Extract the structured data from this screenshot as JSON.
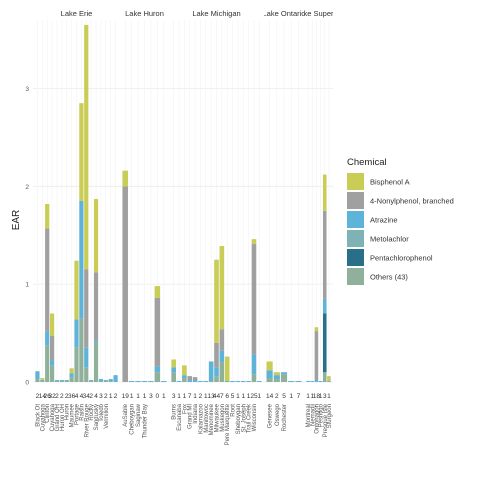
{
  "chart_data": {
    "type": "bar",
    "stacked": true,
    "ylabel": "EAR",
    "xlabel": "",
    "title": "",
    "ylim": [
      0,
      3.7
    ],
    "yticks": [
      0,
      1,
      2,
      3
    ],
    "grid": true,
    "legend": {
      "title": "Chemical",
      "placement": "right",
      "items": [
        {
          "name": "Bisphenol A",
          "color": "#c9cc55"
        },
        {
          "name": "4-Nonylphenol, branched",
          "color": "#a0a0a0"
        },
        {
          "name": "Atrazine",
          "color": "#5eb3d9"
        },
        {
          "name": "Metolachlor",
          "color": "#7fb2b4"
        },
        {
          "name": "Pentachlorophenol",
          "color": "#2a6f8a"
        },
        {
          "name": "Others (43)",
          "color": "#8fb09a"
        }
      ]
    },
    "facets": [
      {
        "name": "Lake Erie",
        "sites": [
          {
            "name": "Black Ot",
            "count": "2",
            "stack": [
              0,
              0,
              0.08,
              0,
              0,
              0.03
            ]
          },
          {
            "name": "Cuyahoga",
            "count": "14",
            "stack": [
              0.02,
              0,
              0.01,
              0,
              0,
              0.01
            ]
          },
          {
            "name": "Clinton",
            "count": "26",
            "stack": [
              0.25,
              1.05,
              0.15,
              0,
              0,
              0.37
            ]
          },
          {
            "name": "Cuyahoga",
            "count": "32",
            "stack": [
              0.23,
              0.25,
              0.05,
              0,
              0,
              0.17
            ]
          },
          {
            "name": "Grand OH",
            "count": "2",
            "stack": [
              0,
              0,
              0.01,
              0,
              0,
              0.01
            ]
          },
          {
            "name": "Huron OH",
            "count": "2",
            "stack": [
              0,
              0,
              0.01,
              0,
              0,
              0.01
            ]
          },
          {
            "name": "Huron",
            "count": "2",
            "stack": [
              0,
              0,
              0.01,
              0,
              0,
              0.01
            ]
          },
          {
            "name": "Maumee",
            "count": "36",
            "stack": [
              0.05,
              0,
              0.04,
              0,
              0,
              0.05
            ]
          },
          {
            "name": "Portage",
            "count": "4",
            "stack": [
              0.6,
              0,
              0.29,
              0,
              0,
              0.35
            ]
          },
          {
            "name": "Raisin",
            "count": "4",
            "stack": [
              1.0,
              0,
              1.2,
              0,
              0,
              0.65
            ]
          },
          {
            "name": "River Rouge",
            "count": "34",
            "stack": [
              2.5,
              0.8,
              0.2,
              0,
              0,
              0.15
            ]
          },
          {
            "name": "Rocky",
            "count": "2",
            "stack": [
              0,
              0,
              0.01,
              0,
              0,
              0.01
            ]
          },
          {
            "name": "Sandusky",
            "count": "4",
            "stack": [
              0.75,
              0.7,
              0.02,
              0,
              0,
              0.4
            ]
          },
          {
            "name": "Toledo",
            "count": "3",
            "stack": [
              0,
              0,
              0.02,
              0,
              0,
              0.01
            ]
          },
          {
            "name": "Vermilion",
            "count": "2",
            "stack": [
              0,
              0,
              0.01,
              0,
              0,
              0.01
            ]
          },
          {
            "name": "",
            "count": "1",
            "stack": [
              0,
              0,
              0.02,
              0,
              0,
              0.01
            ]
          },
          {
            "name": "",
            "count": "2",
            "stack": [
              0,
              0,
              0.07,
              0,
              0,
              0
            ]
          }
        ]
      },
      {
        "name": "Lake Huron",
        "sites": [
          {
            "name": "AuSable",
            "count": "19",
            "stack": [
              0.16,
              2.0,
              0,
              0,
              0,
              0
            ]
          },
          {
            "name": "Cheboygan",
            "count": "1",
            "stack": [
              0,
              0,
              0.01,
              0,
              0,
              0
            ]
          },
          {
            "name": "Saginaw",
            "count": "1",
            "stack": [
              0,
              0,
              0.01,
              0,
              0,
              0
            ]
          },
          {
            "name": "Thunder Bay",
            "count": "1",
            "stack": [
              0,
              0,
              0.01,
              0,
              0,
              0
            ]
          },
          {
            "name": "",
            "count": "3",
            "stack": [
              0,
              0,
              0.01,
              0,
              0,
              0
            ]
          },
          {
            "name": "",
            "count": "0",
            "stack": [
              0.12,
              0.7,
              0.06,
              0,
              0,
              0.1
            ]
          },
          {
            "name": "",
            "count": "1",
            "stack": [
              0,
              0,
              0.01,
              0,
              0,
              0
            ]
          }
        ]
      },
      {
        "name": "Lake Michigan",
        "sites": [
          {
            "name": "Burns",
            "count": "3",
            "stack": [
              0.08,
              0,
              0.05,
              0,
              0,
              0.1
            ]
          },
          {
            "name": "Escanaba",
            "count": "1",
            "stack": [
              0,
              0,
              0.01,
              0,
              0,
              0
            ]
          },
          {
            "name": "Fox",
            "count": "1",
            "stack": [
              0.1,
              0,
              0.03,
              0,
              0,
              0.04
            ]
          },
          {
            "name": "Grand MI",
            "count": "7",
            "stack": [
              0,
              0.04,
              0.02,
              0,
              0,
              0
            ]
          },
          {
            "name": "Indiana",
            "count": "1",
            "stack": [
              0,
              0.03,
              0.02,
              0,
              0,
              0
            ]
          },
          {
            "name": "Kalamazoo",
            "count": "2",
            "stack": [
              0,
              0,
              0.01,
              0,
              0,
              0
            ]
          },
          {
            "name": "Manitowoc",
            "count": "1",
            "stack": [
              0,
              0,
              0.01,
              0,
              0,
              0
            ]
          },
          {
            "name": "Menominee",
            "count": "13",
            "stack": [
              0,
              0,
              0.2,
              0,
              0,
              0.01
            ]
          },
          {
            "name": "Milwaukee",
            "count": "44",
            "stack": [
              0.85,
              0.25,
              0.09,
              0,
              0,
              0.06
            ]
          },
          {
            "name": "Muskegon",
            "count": "7",
            "stack": [
              0.85,
              0.22,
              0.12,
              0,
              0,
              0.2
            ]
          },
          {
            "name": "Pere Marquette",
            "count": "6",
            "stack": [
              0.25,
              0,
              0.01,
              0,
              0,
              0
            ]
          },
          {
            "name": "Root",
            "count": "5",
            "stack": [
              0,
              0,
              0.01,
              0,
              0,
              0
            ]
          },
          {
            "name": "Sheboygan",
            "count": "1",
            "stack": [
              0,
              0,
              0.01,
              0,
              0,
              0
            ]
          },
          {
            "name": "St. Joseph",
            "count": "1",
            "stack": [
              0,
              0,
              0.01,
              0,
              0,
              0
            ]
          },
          {
            "name": "Trail Creek",
            "count": "1",
            "stack": [
              0,
              0,
              0.01,
              0,
              0,
              0
            ]
          },
          {
            "name": "Wisconsin",
            "count": "25",
            "stack": [
              0.05,
              1.13,
              0.2,
              0,
              0,
              0.08
            ]
          },
          {
            "name": "",
            "count": "1",
            "stack": [
              0,
              0,
              0.01,
              0,
              0,
              0
            ]
          }
        ]
      },
      {
        "name": "Lake Ontario",
        "sites": [
          {
            "name": "Genesee",
            "count": "14",
            "stack": [
              0.09,
              0,
              0.08,
              0,
              0,
              0.04
            ]
          },
          {
            "name": "Oswego",
            "count": "2",
            "stack": [
              0.03,
              0,
              0.04,
              0,
              0,
              0.03
            ]
          },
          {
            "name": "Rochester",
            "count": "5",
            "stack": [
              0,
              0,
              0.02,
              0,
              0,
              0.08
            ]
          },
          {
            "name": "",
            "count": "1",
            "stack": [
              0,
              0,
              0.01,
              0,
              0,
              0
            ]
          },
          {
            "name": "",
            "count": "7",
            "stack": [
              0,
              0,
              0.01,
              0,
              0,
              0
            ]
          }
        ]
      },
      {
        "name": "Lake Superior",
        "sites": [
          {
            "name": "Montreal",
            "count": "1",
            "stack": [
              0,
              0,
              0.01,
              0,
              0,
              0
            ]
          },
          {
            "name": "Nemadji",
            "count": "1",
            "stack": [
              0,
              0,
              0.01,
              0,
              0,
              0
            ]
          },
          {
            "name": "Ontonagon",
            "count": "18",
            "stack": [
              0.04,
              0.5,
              0.02,
              0,
              0,
              0
            ]
          },
          {
            "name": "Peshtigo",
            "count": "1",
            "stack": [
              0,
              0,
              0.01,
              0,
              0,
              0
            ]
          },
          {
            "name": "Presque Isle",
            "count": "3",
            "stack": [
              0.37,
              0.9,
              0.15,
              0,
              0.6,
              0.1
            ]
          },
          {
            "name": "Sturgeon",
            "count": "1",
            "stack": [
              0.05,
              0,
              0.01,
              0,
              0,
              0
            ]
          }
        ]
      }
    ]
  }
}
